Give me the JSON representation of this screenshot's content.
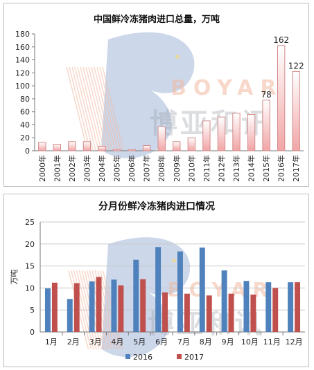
{
  "colors": {
    "bar_2016": "#4f81bd",
    "bar_2017": "#c0504d",
    "annual_fill_top": "#ffffff",
    "annual_fill_bottom": "#f1a5a5",
    "annual_stroke": "#d28a8a",
    "grid": "#c8c8c8",
    "watermark_blue": "#8fa6d0",
    "watermark_peach": "#f2b9a0",
    "watermark_gray": "#9aa0a8"
  },
  "watermark": {
    "text_latin": "BOYAR",
    "text_cjk": "博亚和讯"
  },
  "chart_data": [
    {
      "type": "bar",
      "title": "中国鲜冷冻猪肉进口总量，万吨",
      "categories": [
        "2000年",
        "2001年",
        "2002年",
        "2003年",
        "2004年",
        "2005年",
        "2006年",
        "2007年",
        "2008年",
        "2009年",
        "2010年",
        "2011年",
        "2012年",
        "2013年",
        "2014年",
        "2015年",
        "2016年",
        "2017年"
      ],
      "values": [
        13,
        10,
        14,
        14,
        7,
        2,
        2,
        8,
        37,
        14,
        20,
        46,
        52,
        58,
        56,
        78,
        162,
        122
      ],
      "data_labels": [
        "",
        "",
        "",
        "",
        "",
        "",
        "",
        "",
        "",
        "",
        "",
        "",
        "",
        "",
        "",
        "78",
        "162",
        "122"
      ],
      "ylim": [
        0,
        180
      ],
      "yticks": [
        "0",
        "20",
        "40",
        "60",
        "80",
        "100",
        "120",
        "140",
        "160",
        "180"
      ],
      "grid": false,
      "legend": "none"
    },
    {
      "type": "bar",
      "title": "分月份鲜冷冻猪肉进口情况",
      "ylabel": "万吨",
      "categories": [
        "1月",
        "2月",
        "3月",
        "4月",
        "5月",
        "6月",
        "7月",
        "8月",
        "9月",
        "10月",
        "11月",
        "12月"
      ],
      "series": [
        {
          "name": "2016",
          "values": [
            9.9,
            7.5,
            11.5,
            11.9,
            16.4,
            19.3,
            18.3,
            19.2,
            14.0,
            11.6,
            11.3,
            11.3
          ]
        },
        {
          "name": "2017",
          "values": [
            11.2,
            11.1,
            12.5,
            10.6,
            12.0,
            9.0,
            8.7,
            8.3,
            8.7,
            8.5,
            10.0,
            11.3
          ]
        }
      ],
      "ylim": [
        0,
        25
      ],
      "yticks": [
        "0",
        "5",
        "10",
        "15",
        "20",
        "25"
      ],
      "grid": true,
      "legend": "bottom"
    }
  ]
}
